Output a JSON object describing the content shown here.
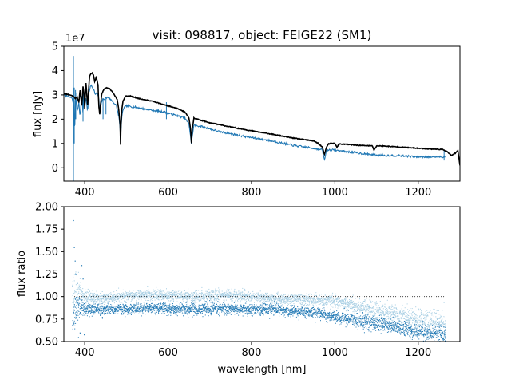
{
  "figure": {
    "title": "visit: 098817, object: FEIGE22 (SM1)"
  },
  "chart_data": [
    {
      "type": "line",
      "name": "flux-panel",
      "ylabel": "flux [nJy]",
      "y_offset_label": "1e7",
      "xlim": [
        350,
        1300
      ],
      "ylim": [
        -0.55,
        5.0
      ],
      "xticks": [
        400,
        600,
        800,
        1000,
        1200
      ],
      "yticks": [
        0,
        1,
        2,
        3,
        4,
        5
      ],
      "series": [
        {
          "name": "model",
          "color": "#000000",
          "x": [
            350,
            360,
            370,
            375,
            378,
            382,
            386,
            389,
            393,
            396,
            398,
            400,
            403,
            407,
            410,
            412,
            415,
            418,
            421,
            424,
            428,
            432,
            434,
            436,
            438,
            441,
            446,
            452,
            460,
            470,
            478,
            482,
            485,
            486,
            487,
            489,
            492,
            498,
            510,
            530,
            560,
            590,
            620,
            640,
            650,
            654,
            656,
            658,
            662,
            670,
            700,
            750,
            800,
            850,
            900,
            930,
            950,
            960,
            970,
            975,
            980,
            985,
            990,
            1000,
            1005,
            1010,
            1030,
            1060,
            1090,
            1094,
            1100,
            1110,
            1150,
            1200,
            1260,
            1270,
            1280,
            1290,
            1295,
            1300
          ],
          "y": [
            3.05,
            3.02,
            2.97,
            2.92,
            2.85,
            2.9,
            2.7,
            3.2,
            2.55,
            3.35,
            3.1,
            2.45,
            3.5,
            2.6,
            3.35,
            3.8,
            3.88,
            3.9,
            3.82,
            3.55,
            3.75,
            3.4,
            2.5,
            2.2,
            2.6,
            3.05,
            3.22,
            3.3,
            3.25,
            3.05,
            2.8,
            2.35,
            1.75,
            0.95,
            1.75,
            2.4,
            2.75,
            2.95,
            2.95,
            2.85,
            2.75,
            2.6,
            2.45,
            2.3,
            2.05,
            1.6,
            1.0,
            1.6,
            2.05,
            2.0,
            1.85,
            1.68,
            1.52,
            1.38,
            1.22,
            1.15,
            1.1,
            1.0,
            0.85,
            0.55,
            0.85,
            0.98,
            1.0,
            1.0,
            0.85,
            0.98,
            0.96,
            0.92,
            0.9,
            0.72,
            0.9,
            0.9,
            0.86,
            0.8,
            0.75,
            0.65,
            0.5,
            0.62,
            0.7,
            0.1
          ]
        },
        {
          "name": "observed",
          "color": "#1f77b4",
          "x": [
            350,
            360,
            370,
            374,
            376,
            377,
            379,
            382,
            386,
            389,
            393,
            396,
            398,
            400,
            403,
            407,
            410,
            413,
            416,
            419,
            422,
            426,
            430,
            434,
            436,
            438,
            442,
            448,
            456,
            466,
            476,
            482,
            485,
            486,
            487,
            489,
            493,
            500,
            520,
            550,
            590,
            620,
            640,
            650,
            654,
            656,
            658,
            662,
            680,
            720,
            780,
            850,
            900,
            950,
            970,
            975,
            980,
            990,
            1050,
            1100,
            1150,
            1200,
            1250,
            1265
          ],
          "y": [
            3.0,
            2.95,
            2.85,
            2.5,
            1.2,
            2.7,
            2.8,
            2.3,
            2.7,
            2.1,
            3.0,
            2.2,
            2.9,
            2.5,
            2.9,
            2.3,
            3.1,
            3.3,
            3.4,
            3.3,
            3.2,
            3.0,
            3.1,
            2.8,
            2.1,
            2.5,
            2.8,
            2.85,
            2.9,
            2.75,
            2.55,
            2.1,
            1.6,
            1.15,
            1.6,
            2.1,
            2.45,
            2.55,
            2.5,
            2.4,
            2.3,
            2.15,
            2.05,
            1.8,
            1.3,
            0.95,
            1.3,
            1.75,
            1.7,
            1.5,
            1.3,
            1.1,
            0.92,
            0.8,
            0.74,
            0.3,
            0.72,
            0.74,
            0.62,
            0.52,
            0.5,
            0.45,
            0.45,
            0.45
          ]
        }
      ],
      "spikes": {
        "name": "observed-spikes",
        "color": "#1f77b4",
        "x": [
          373,
          375,
          378,
          381,
          396,
          410,
          444,
          451,
          596,
          1262
        ],
        "y_top": [
          4.6,
          3.3,
          3.2,
          3.1,
          3.1,
          3.2,
          2.85,
          2.85,
          2.7,
          0.7
        ],
        "y_bottom": [
          -0.55,
          1.0,
          2.0,
          2.0,
          1.9,
          2.6,
          2.0,
          2.2,
          2.0,
          0.3
        ]
      }
    },
    {
      "type": "scatter",
      "name": "ratio-panel",
      "ylabel": "flux ratio",
      "xlabel": "wavelength [nm]",
      "xlim": [
        350,
        1300
      ],
      "ylim": [
        0.5,
        2.0
      ],
      "xticks": [
        400,
        600,
        800,
        1000,
        1200
      ],
      "yticks": [
        0.5,
        0.75,
        1.0,
        1.25,
        1.5,
        1.75,
        2.0
      ],
      "ytick_labels": [
        "0.50",
        "0.75",
        "1.00",
        "1.25",
        "1.50",
        "1.75",
        "2.00"
      ],
      "reference_line": {
        "y": 1.0,
        "x_from": 375,
        "x_to": 1265,
        "style": "dotted"
      },
      "series": [
        {
          "name": "ratio-light",
          "color": "#a6cee3",
          "x_range": [
            370,
            1265
          ],
          "trend_x": [
            370,
            380,
            390,
            400,
            450,
            500,
            550,
            600,
            650,
            700,
            750,
            800,
            850,
            900,
            950,
            1000,
            1050,
            1100,
            1150,
            1200,
            1265
          ],
          "trend_y": [
            1.05,
            1.08,
            1.05,
            1.0,
            0.98,
            1.02,
            1.02,
            1.02,
            1.0,
            1.02,
            1.02,
            1.0,
            0.98,
            0.98,
            0.96,
            0.95,
            0.9,
            0.85,
            0.8,
            0.75,
            0.68
          ],
          "scatter_sigma": [
            0.12,
            0.1,
            0.06,
            0.04,
            0.03,
            0.03,
            0.03,
            0.03,
            0.03,
            0.03,
            0.03,
            0.03,
            0.03,
            0.03,
            0.03,
            0.03,
            0.04,
            0.05,
            0.05,
            0.06,
            0.08
          ]
        },
        {
          "name": "ratio-dark",
          "color": "#1f77b4",
          "x_range": [
            370,
            1265
          ],
          "trend_x": [
            370,
            380,
            390,
            400,
            450,
            500,
            550,
            600,
            650,
            700,
            750,
            800,
            850,
            900,
            950,
            1000,
            1050,
            1100,
            1150,
            1200,
            1265
          ],
          "trend_y": [
            0.82,
            0.88,
            0.88,
            0.86,
            0.86,
            0.87,
            0.88,
            0.87,
            0.86,
            0.87,
            0.87,
            0.86,
            0.86,
            0.84,
            0.83,
            0.78,
            0.74,
            0.7,
            0.66,
            0.62,
            0.58
          ],
          "scatter_sigma": [
            0.12,
            0.08,
            0.05,
            0.04,
            0.03,
            0.03,
            0.03,
            0.03,
            0.03,
            0.03,
            0.03,
            0.03,
            0.03,
            0.03,
            0.03,
            0.03,
            0.035,
            0.04,
            0.04,
            0.045,
            0.06
          ]
        }
      ],
      "outliers": {
        "name": "ratio-outliers",
        "color": "#1f77b4",
        "x": [
          372,
          374,
          376,
          378,
          381,
          384,
          388,
          392,
          395,
          398
        ],
        "y": [
          1.85,
          1.55,
          1.4,
          1.25,
          1.15,
          0.55,
          0.6,
          1.35,
          1.2,
          0.58
        ]
      }
    }
  ]
}
